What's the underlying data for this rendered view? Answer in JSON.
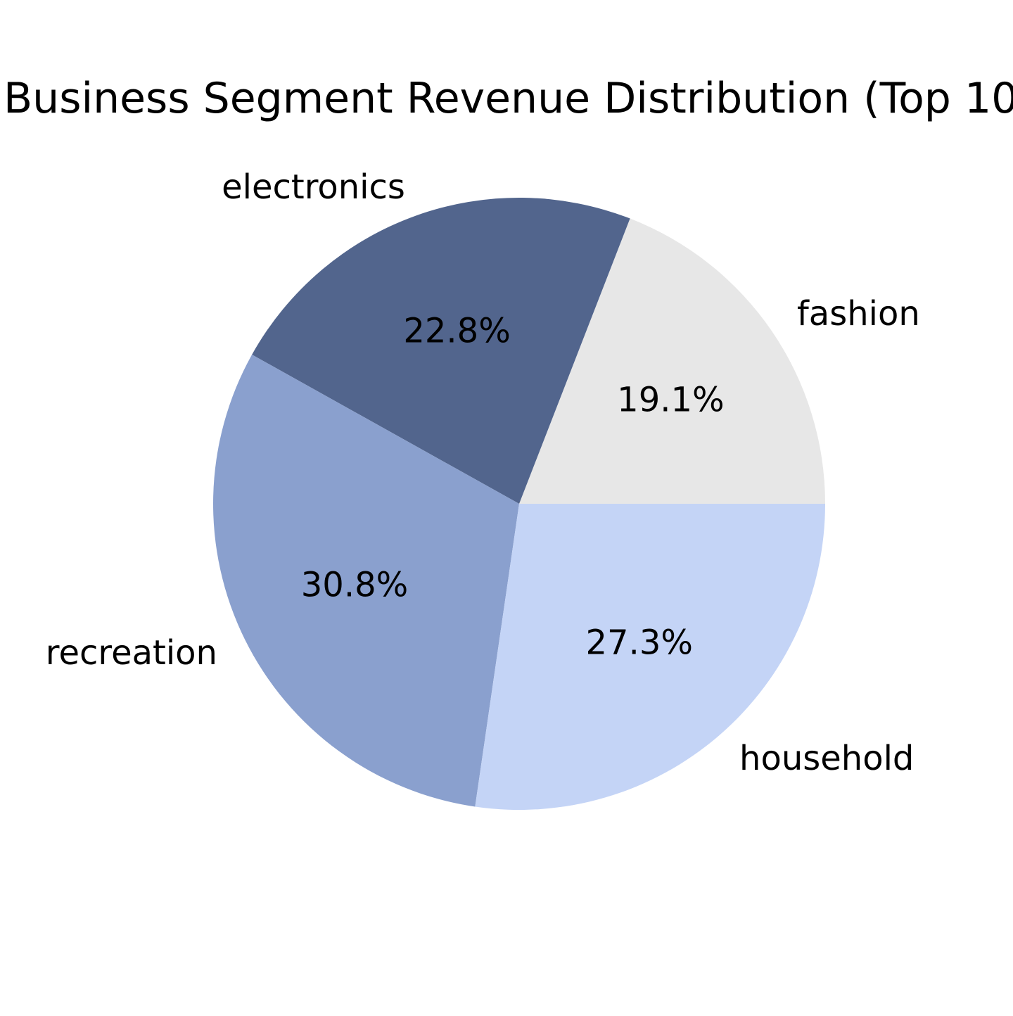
{
  "chart_data": {
    "type": "pie",
    "title": "Business Segment Revenue Distribution (Top 10",
    "start_angle_deg": 0,
    "direction": "counterclockwise",
    "slices": [
      {
        "label": "fashion",
        "value": 19.1,
        "pct_label": "19.1%",
        "color": "#e7e7e7"
      },
      {
        "label": "electronics",
        "value": 22.8,
        "pct_label": "22.8%",
        "color": "#52658d"
      },
      {
        "label": "recreation",
        "value": 30.8,
        "pct_label": "30.8%",
        "color": "#8aa0ce"
      },
      {
        "label": "household",
        "value": 27.3,
        "pct_label": "27.3%",
        "color": "#c4d4f6"
      }
    ]
  }
}
